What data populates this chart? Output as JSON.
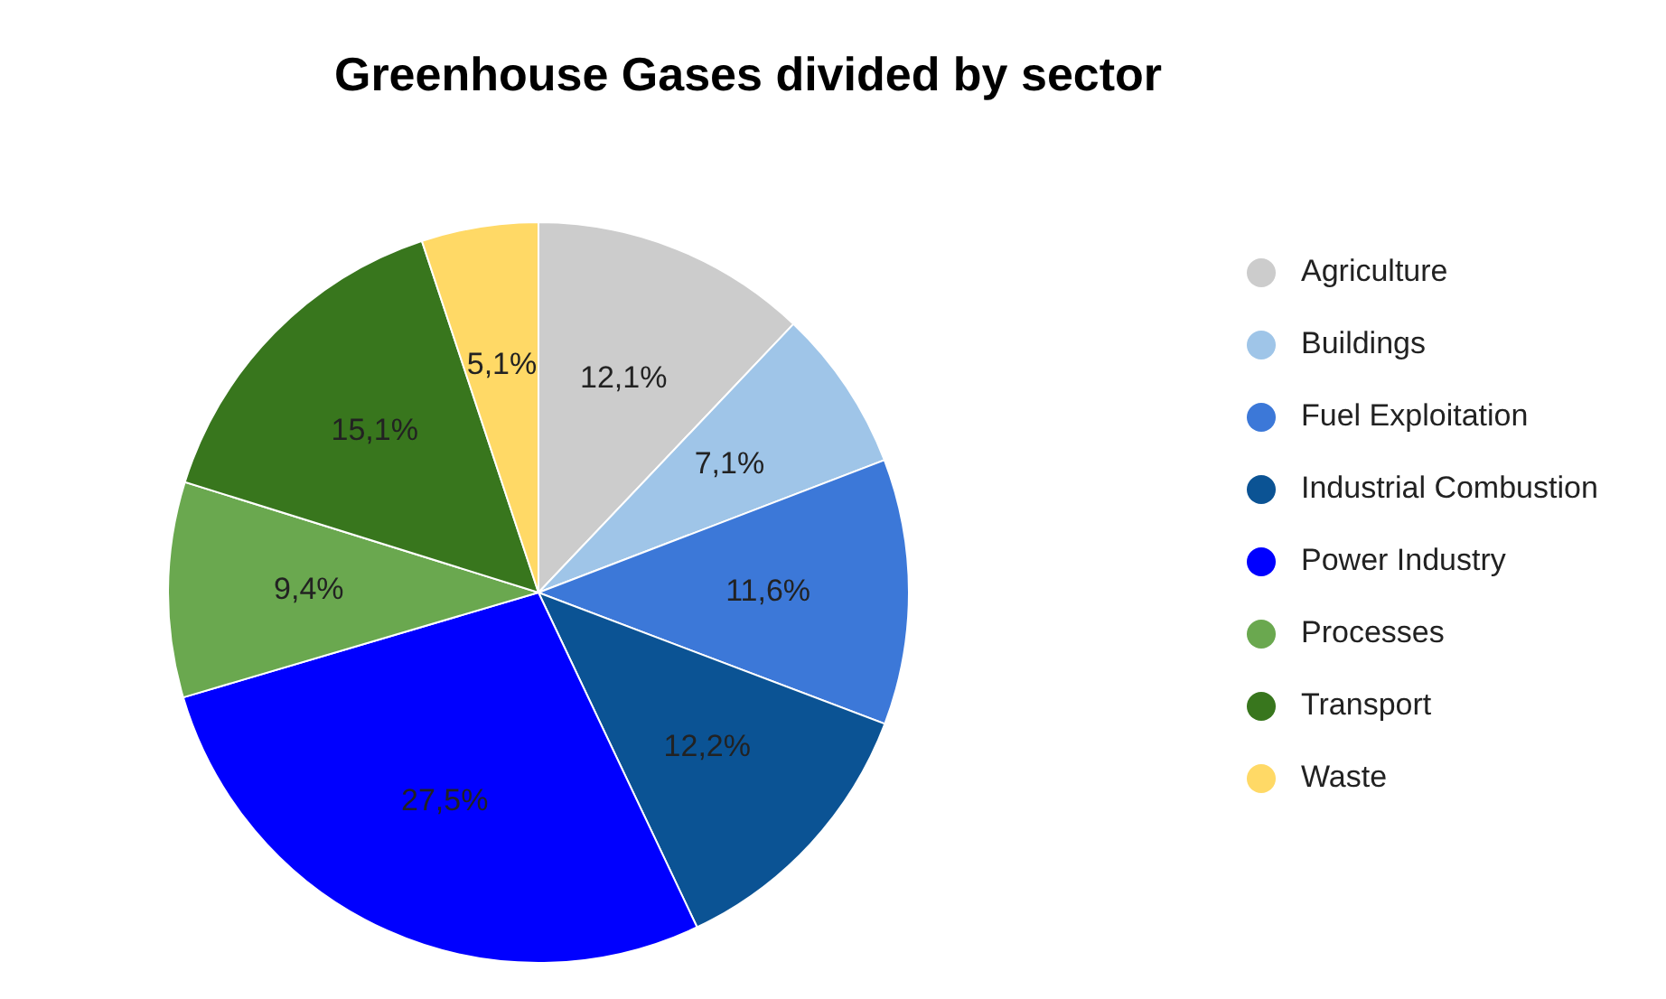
{
  "chart_data": {
    "type": "pie",
    "title": "Greenhouse Gases divided by sector",
    "categories": [
      "Agriculture",
      "Buildings",
      "Fuel Exploitation",
      "Industrial Combustion",
      "Power Industry",
      "Processes",
      "Transport",
      "Waste"
    ],
    "values": [
      12.1,
      7.1,
      11.6,
      12.2,
      27.5,
      9.4,
      15.1,
      5.1
    ],
    "colors": [
      "#cccccc",
      "#9fc5e8",
      "#3c78d8",
      "#0b5394",
      "#0000ff",
      "#6aa84f",
      "#38761d",
      "#ffd966"
    ],
    "value_labels": [
      "12,1%",
      "7,1%",
      "11,6%",
      "12,2%",
      "27,5%",
      "9,4%",
      "15,1%",
      "5,1%"
    ],
    "legend": "right"
  }
}
